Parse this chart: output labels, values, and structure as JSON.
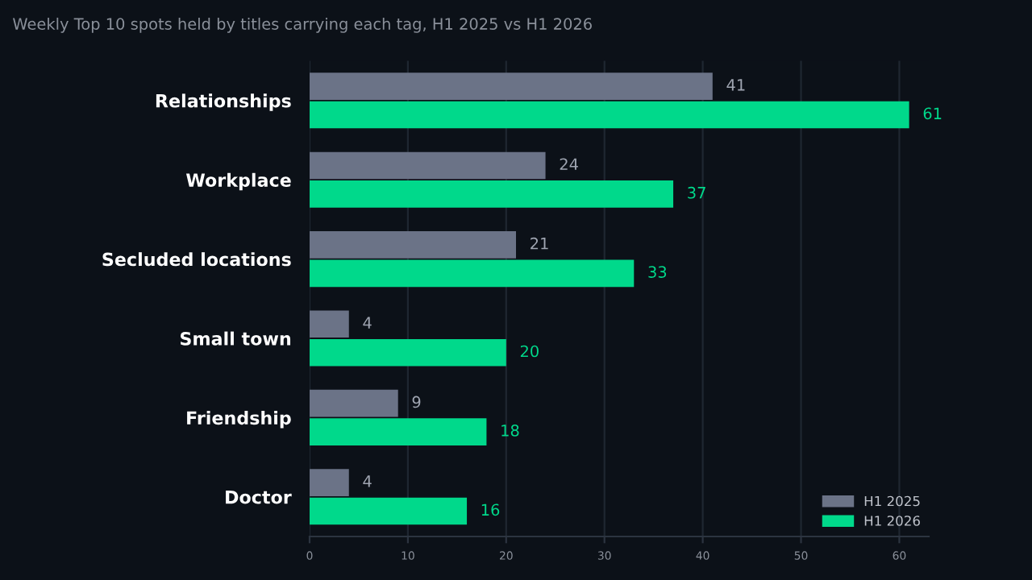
{
  "chart_data": {
    "type": "bar",
    "orientation": "horizontal",
    "title": "Weekly Top 10 spots held by titles carrying each tag, H1 2025 vs H1 2026",
    "categories": [
      "Relationships",
      "Workplace",
      "Secluded locations",
      "Small town",
      "Friendship",
      "Doctor"
    ],
    "series": [
      {
        "name": "H1 2025",
        "color": "#6b7387",
        "values": [
          41,
          24,
          21,
          4,
          9,
          4
        ]
      },
      {
        "name": "H1 2026",
        "color": "#00d98b",
        "values": [
          61,
          37,
          33,
          20,
          18,
          16
        ]
      }
    ],
    "xlim": [
      0,
      63
    ],
    "xticks": [
      0,
      10,
      20,
      30,
      40,
      50,
      60
    ],
    "grid": "x",
    "legend": "bottom right",
    "data_labels": true
  }
}
